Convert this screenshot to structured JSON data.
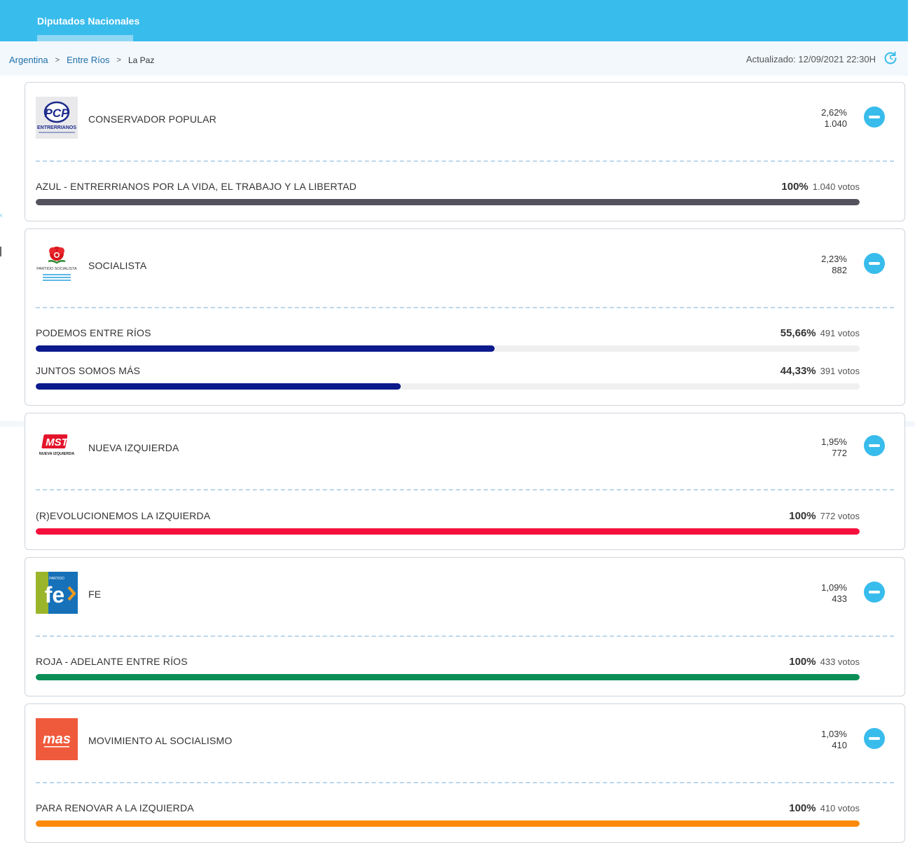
{
  "header": {
    "tab_label": "Diputados Nacionales"
  },
  "breadcrumb": {
    "country": "Argentina",
    "province": "Entre Ríos",
    "locality": "La Paz",
    "separator": ">"
  },
  "updated_label": "Actualizado: 12/09/2021 22:30H",
  "icons": {
    "refresh": "refresh-icon",
    "collapse": "minus-circle-icon"
  },
  "colors": {
    "accent": "#38bcec",
    "azul": "#54535d",
    "navy": "#0b1a8c",
    "red": "#f5103c",
    "green": "#0b8e57",
    "orange": "#fb8a0a"
  },
  "parties": [
    {
      "name": "CONSERVADOR POPULAR",
      "logo_text": "PCP",
      "logo_sub": "ENTRERRIANOS",
      "percent": "2,62%",
      "votes": "1.040",
      "lists": [
        {
          "name": "AZUL - ENTRERRIANOS POR LA VIDA, EL TRABAJO Y LA LIBERTAD",
          "percent": "100%",
          "votes": "1.040 votos",
          "share": 1.0,
          "color": "#54535d"
        }
      ]
    },
    {
      "name": "SOCIALISTA",
      "logo_text": "PARTIDO SOCIALISTA",
      "percent": "2,23%",
      "votes": "882",
      "lists": [
        {
          "name": "PODEMOS ENTRE RÍOS",
          "percent": "55,66%",
          "votes": "491 votos",
          "share": 0.5566,
          "color": "#0b1a8c"
        },
        {
          "name": "JUNTOS SOMOS MÁS",
          "percent": "44,33%",
          "votes": "391 votos",
          "share": 0.4433,
          "color": "#0b1a8c"
        }
      ]
    },
    {
      "name": "NUEVA IZQUIERDA",
      "logo_text": "MST",
      "logo_sub": "NUEVA IZQUIERDA",
      "percent": "1,95%",
      "votes": "772",
      "lists": [
        {
          "name": "(R)EVOLUCIONEMOS LA IZQUIERDA",
          "percent": "100%",
          "votes": "772 votos",
          "share": 1.0,
          "color": "#f5103c"
        }
      ]
    },
    {
      "name": "FE",
      "logo_text": "fe",
      "logo_sub": "PARTIDO",
      "percent": "1,09%",
      "votes": "433",
      "lists": [
        {
          "name": "ROJA - ADELANTE ENTRE RÍOS",
          "percent": "100%",
          "votes": "433 votos",
          "share": 1.0,
          "color": "#0b8e57"
        }
      ]
    },
    {
      "name": "MOVIMIENTO AL SOCIALISMO",
      "logo_text": "mas",
      "percent": "1,03%",
      "votes": "410",
      "lists": [
        {
          "name": "PARA RENOVAR A LA IZQUIERDA",
          "percent": "100%",
          "votes": "410 votos",
          "share": 1.0,
          "color": "#fb8a0a"
        }
      ]
    }
  ]
}
